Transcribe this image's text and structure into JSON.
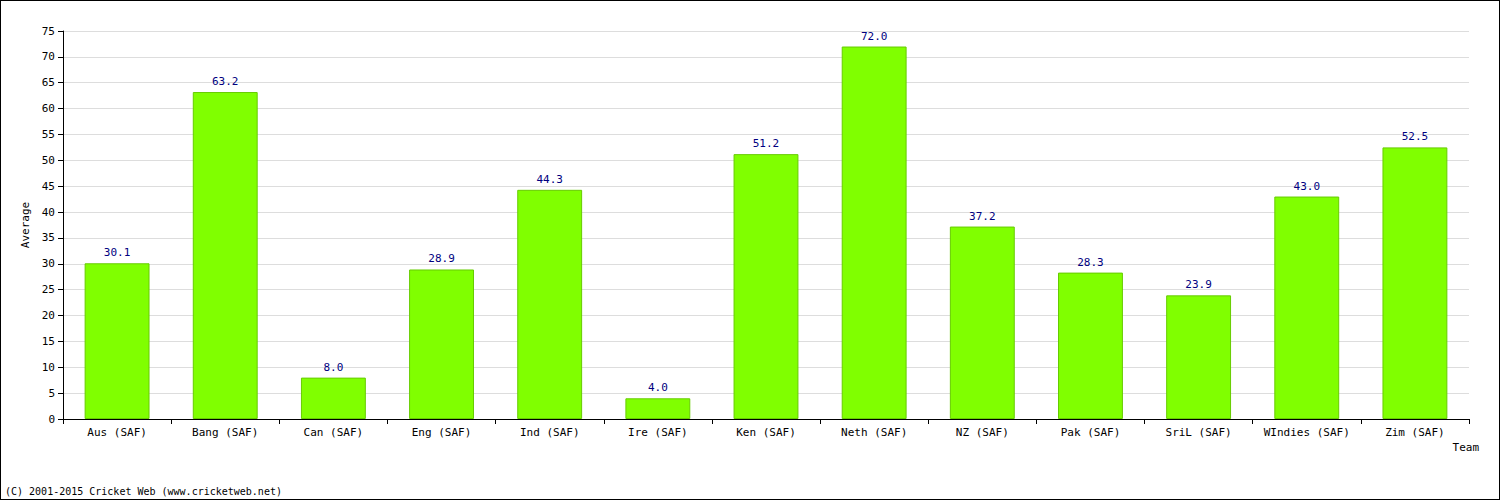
{
  "chart_data": {
    "type": "bar",
    "x_label": "Team",
    "y_label": "Average",
    "annotations": [
      "(C) 2001-2015 Cricket Web (www.cricketweb.net)"
    ],
    "categories": [
      "Aus (SAF)",
      "Bang (SAF)",
      "Can (SAF)",
      "Eng (SAF)",
      "Ind (SAF)",
      "Ire (SAF)",
      "Ken (SAF)",
      "Neth (SAF)",
      "NZ (SAF)",
      "Pak (SAF)",
      "SriL (SAF)",
      "WIndies (SAF)",
      "Zim (SAF)"
    ],
    "values": [
      30.1,
      63.2,
      8.0,
      28.9,
      44.3,
      4.0,
      51.2,
      72.0,
      37.2,
      28.3,
      23.9,
      43.0,
      52.5
    ],
    "value_labels": [
      "30.1",
      "63.2",
      "8.0",
      "28.9",
      "44.3",
      "4.0",
      "51.2",
      "72.0",
      "37.2",
      "28.3",
      "23.9",
      "43.0",
      "52.5"
    ],
    "color": "#80ff00",
    "ylim": [
      0,
      75
    ],
    "yticks": [
      0,
      5,
      10,
      15,
      20,
      25,
      30,
      35,
      40,
      45,
      50,
      55,
      60,
      65,
      70,
      75
    ],
    "grid": true,
    "data_labels": true
  }
}
